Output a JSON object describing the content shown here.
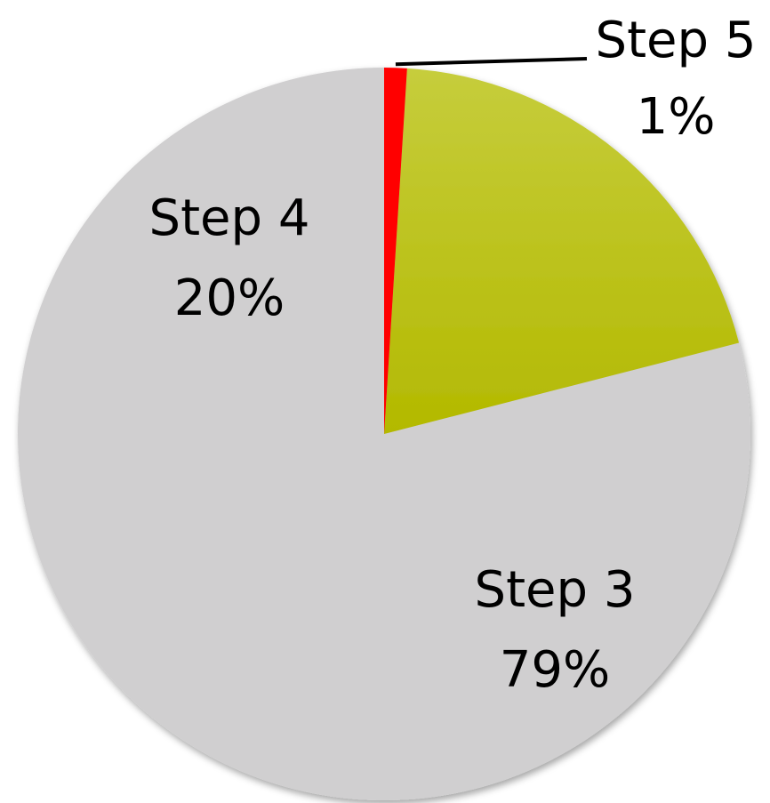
{
  "chart_data": {
    "type": "pie",
    "start": "top",
    "direction": "counterclockwise",
    "slices": [
      {
        "label": "Step 3",
        "value": 79,
        "value_label": "79%",
        "color": "#d0cfd0"
      },
      {
        "label": "Step 4",
        "value": 20,
        "value_label": "20%",
        "color": "#bcc800"
      },
      {
        "label": "Step 5",
        "value": 1,
        "value_label": "1%",
        "color": "#ff0000"
      }
    ]
  }
}
